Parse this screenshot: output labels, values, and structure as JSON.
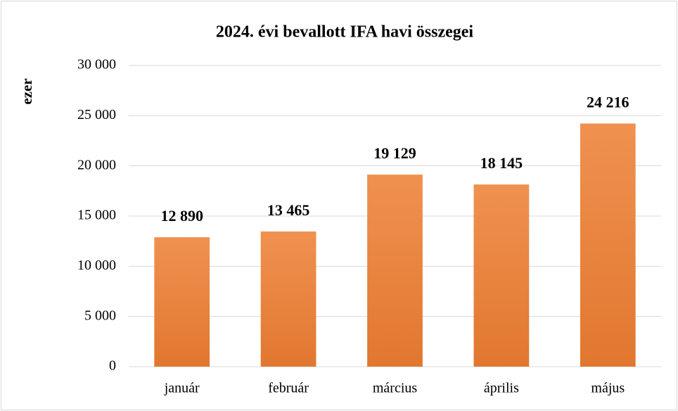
{
  "chart_data": {
    "type": "bar",
    "title": "2024. évi bevallott IFA havi összegei",
    "y_label": "ezer",
    "categories": [
      "január",
      "február",
      "március",
      "április",
      "május"
    ],
    "values": [
      12890,
      13465,
      19129,
      18145,
      24216
    ],
    "value_labels": [
      "12 890",
      "13 465",
      "19 129",
      "18 145",
      "24 216"
    ],
    "color": "#ed7d31",
    "ylim": [
      0,
      30000
    ],
    "yticks": [
      0,
      {
        "value": 5000,
        "label": "5 000"
      },
      {
        "value": 10000,
        "label": "10 000"
      },
      {
        "value": 15000,
        "label": "15 000"
      },
      {
        "value": 20000,
        "label": "20 000"
      },
      {
        "value": 25000,
        "label": "25 000"
      },
      {
        "value": 30000,
        "label": "30 000"
      }
    ],
    "grid": true
  }
}
